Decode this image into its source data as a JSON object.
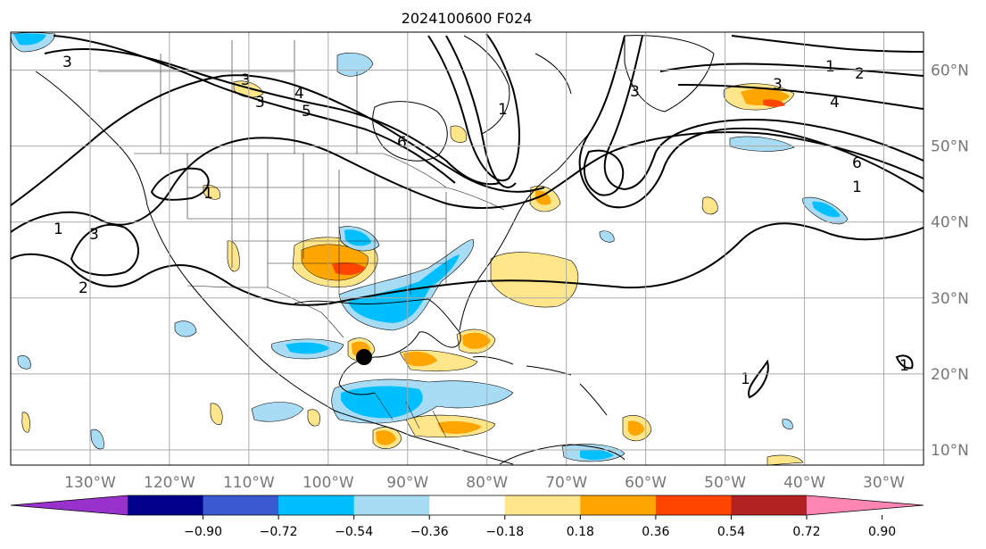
{
  "title": "2024100600 F024",
  "marker": {
    "name": "storm-center"
  },
  "map": {
    "lon_range": [
      -140,
      -25
    ],
    "lat_range": [
      8,
      65
    ],
    "lon_ticks": [
      "130°W",
      "120°W",
      "110°W",
      "100°W",
      "90°W",
      "80°W",
      "70°W",
      "60°W",
      "50°W",
      "40°W",
      "30°W"
    ],
    "lon_values": [
      -130,
      -120,
      -110,
      -100,
      -90,
      -80,
      -70,
      -60,
      -50,
      -40,
      -30
    ],
    "lat_ticks": [
      "10°N",
      "20°N",
      "30°N",
      "40°N",
      "50°N",
      "60°N"
    ],
    "lat_values": [
      10,
      20,
      30,
      40,
      50,
      60
    ],
    "grid": true,
    "contour_labels": [
      "1",
      "2",
      "3",
      "4",
      "5",
      "6"
    ]
  },
  "colorbar": {
    "ticks": [
      "−0.90",
      "−0.72",
      "−0.54",
      "−0.36",
      "−0.18",
      "0.18",
      "0.36",
      "0.54",
      "0.72",
      "0.90"
    ],
    "colors": [
      "#9932cc",
      "#00008b",
      "#3a5bd0",
      "#00bfff",
      "#a8dcf5",
      "#ffffff",
      "#ffe68a",
      "#ffa500",
      "#ff4500",
      "#b22222",
      "#ff85b3"
    ],
    "extend": "both"
  },
  "colors": {
    "pos_light": "#ffe68a",
    "pos_mid": "#ffa500",
    "pos_high": "#ff4500",
    "neg_light": "#a8dcf5",
    "neg_mid": "#00bfff",
    "gridline": "#aaaaaa",
    "tick_text": "#777777"
  }
}
